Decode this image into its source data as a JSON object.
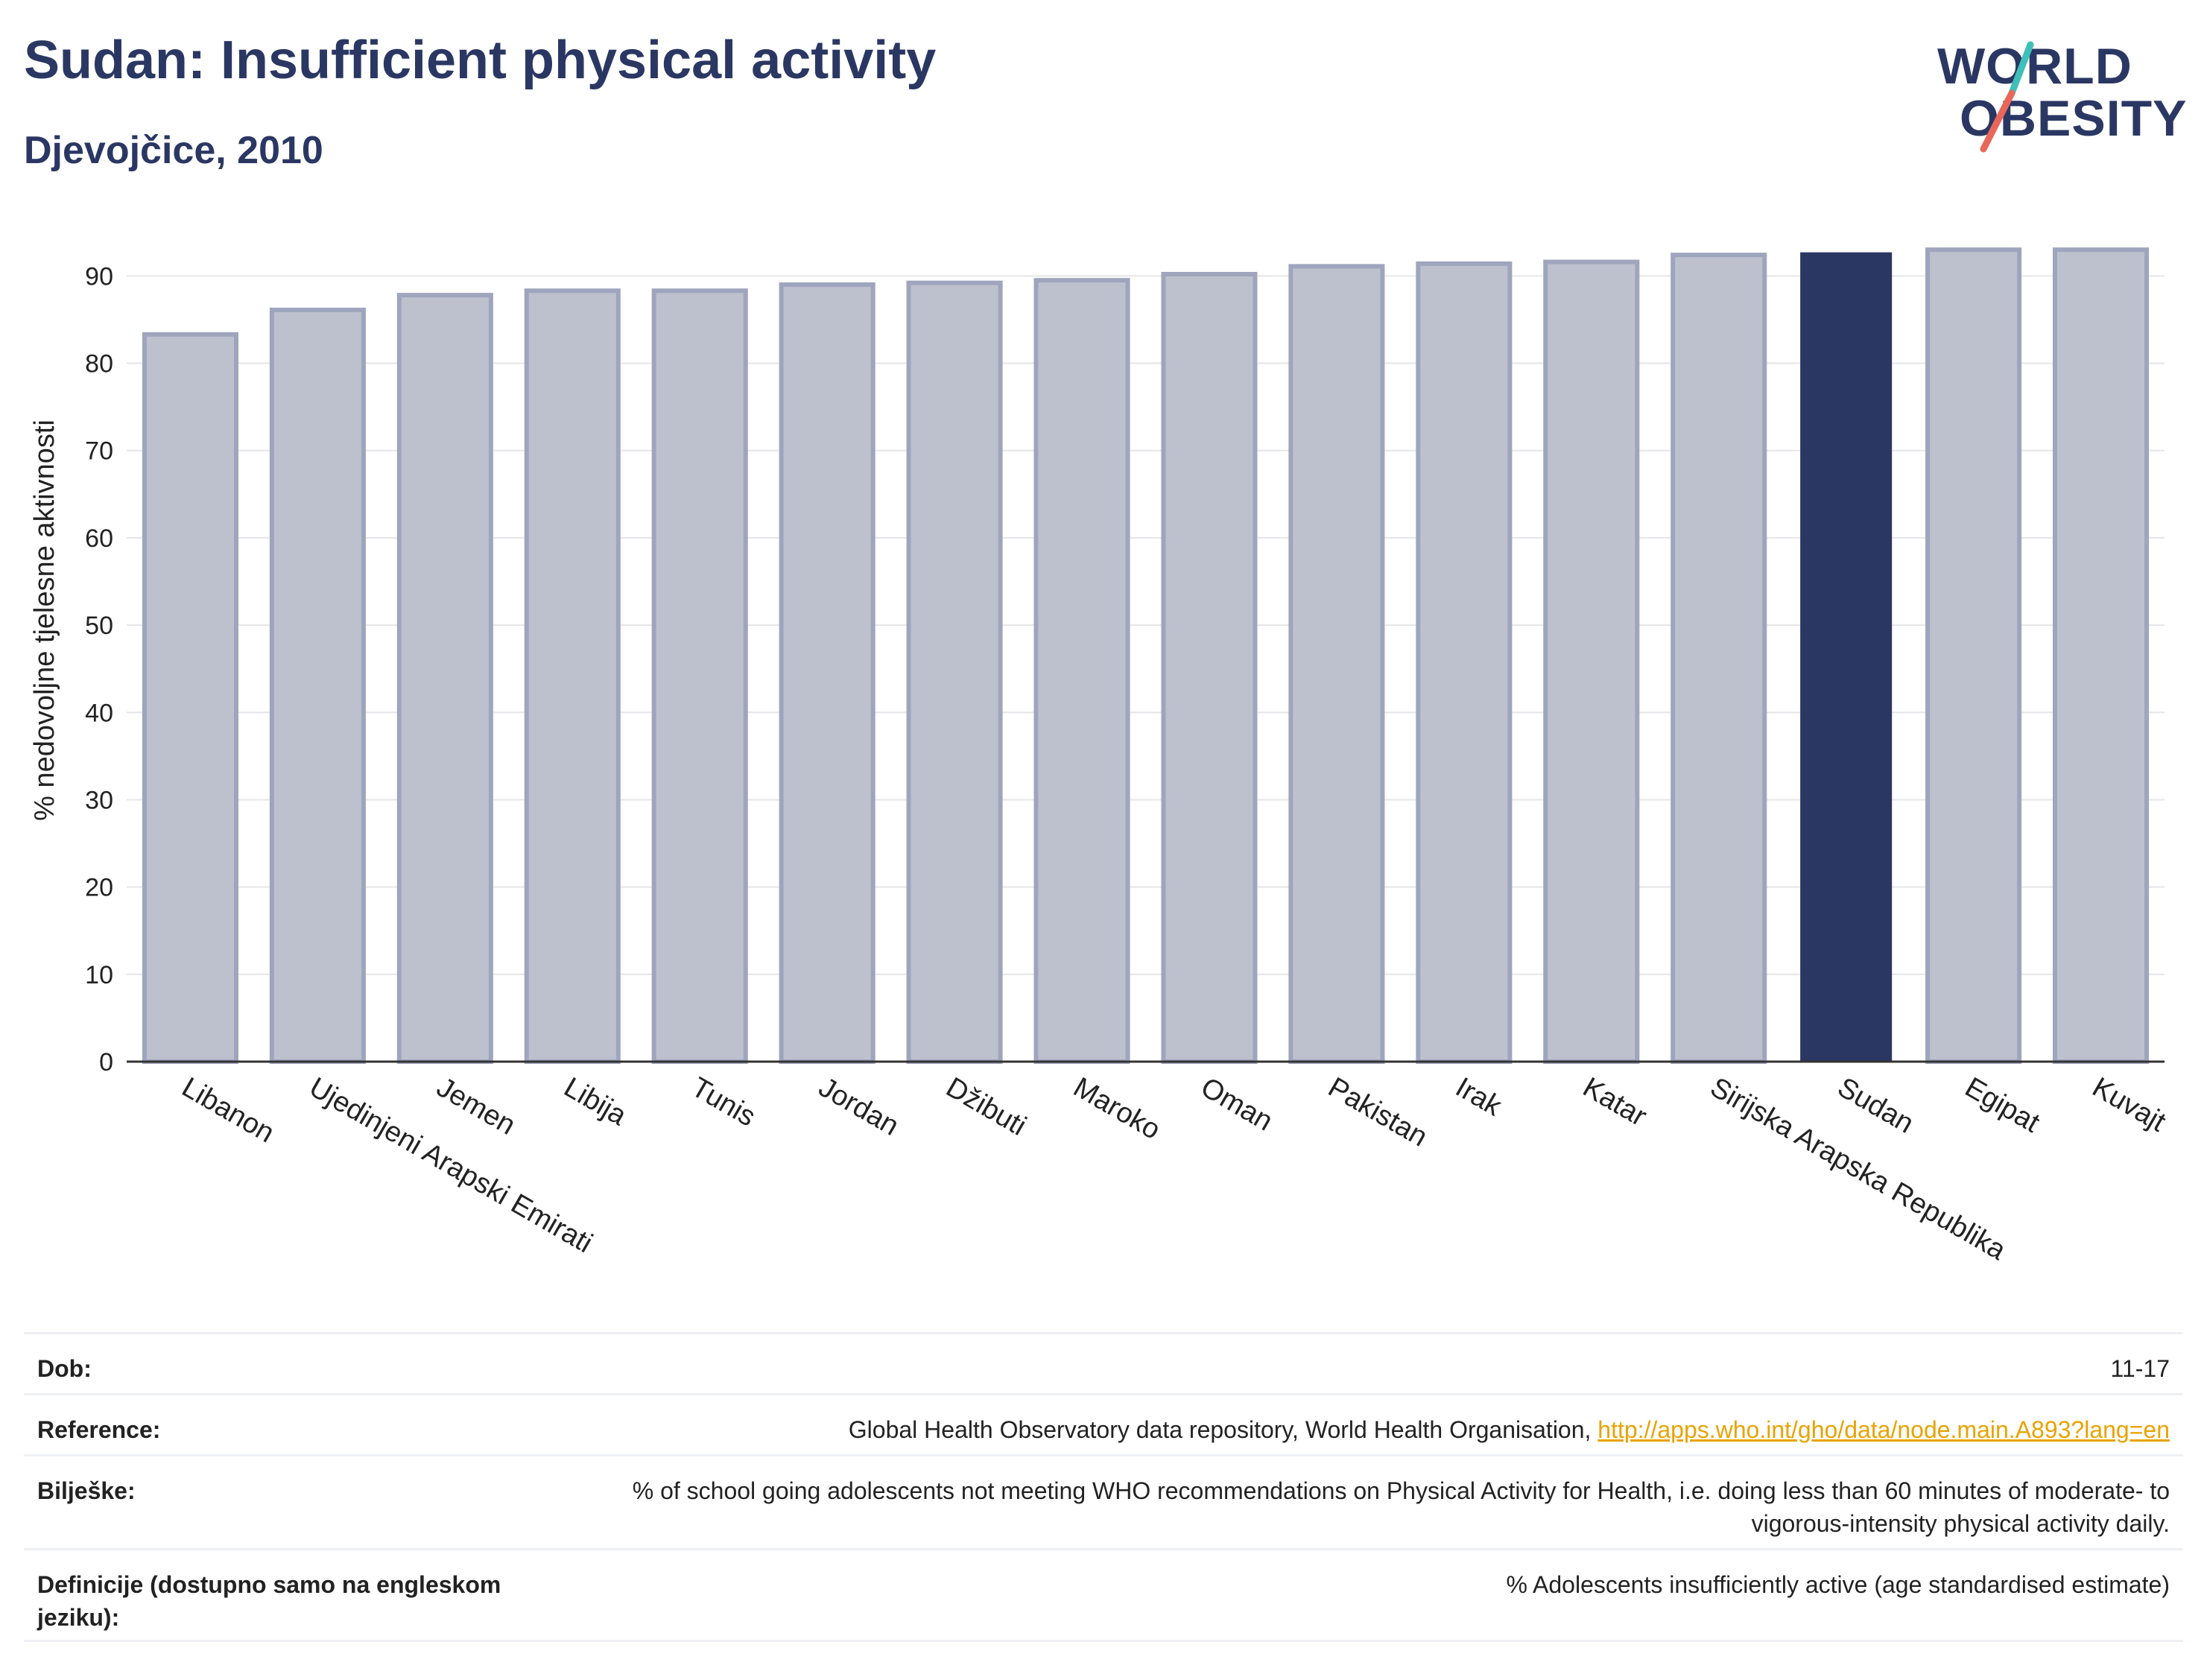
{
  "header": {
    "title": "Sudan: Insufficient physical activity",
    "subtitle": "Djevojčice, 2010"
  },
  "logo": {
    "line1": "WORLD",
    "line2": "OBESITY",
    "accent_colors": [
      "#3fbfb8",
      "#e8675a"
    ]
  },
  "colors": {
    "highlight": "#2b3763",
    "bar_fill": "#bdc1ce",
    "bar_edge": "#9ea5bd",
    "grid": "#e6e6ea"
  },
  "chart_data": {
    "type": "bar",
    "ylabel": "% nedovoljne tjelesne aktivnosti",
    "ylim": [
      0,
      96
    ],
    "yticks": [
      0,
      10,
      20,
      30,
      40,
      50,
      60,
      70,
      80,
      90
    ],
    "grid": true,
    "highlight": "Sudan",
    "categories": [
      "Libanon",
      "Ujedinjeni Arapski Emirati",
      "Jemen",
      "Libija",
      "Tunis",
      "Jordan",
      "Džibuti",
      "Maroko",
      "Oman",
      "Pakistan",
      "Irak",
      "Katar",
      "Sirijska Arapska Republika",
      "Sudan",
      "Egipat",
      "Kuvajt"
    ],
    "values": [
      83.3,
      86.1,
      87.8,
      88.3,
      88.3,
      89.0,
      89.2,
      89.5,
      90.2,
      91.1,
      91.4,
      91.6,
      92.4,
      92.7,
      93.0,
      93.0
    ]
  },
  "meta": {
    "age_label": "Dob:",
    "age_value": "11-17",
    "reference_label": "Reference:",
    "reference_text": "Global Health Observatory data repository, World Health Organisation, ",
    "reference_link": "http://apps.who.int/gho/data/node.main.A893?lang=en",
    "notes_label": "Bilješke:",
    "notes_value": "% of school going adolescents not meeting WHO recommendations on Physical Activity for Health, i.e. doing less than 60 minutes of moderate- to vigorous-intensity physical activity daily.",
    "definitions_label": "Definicije (dostupno samo na engleskom jeziku):",
    "definitions_value": "% Adolescents insufficiently active (age standardised estimate)"
  }
}
